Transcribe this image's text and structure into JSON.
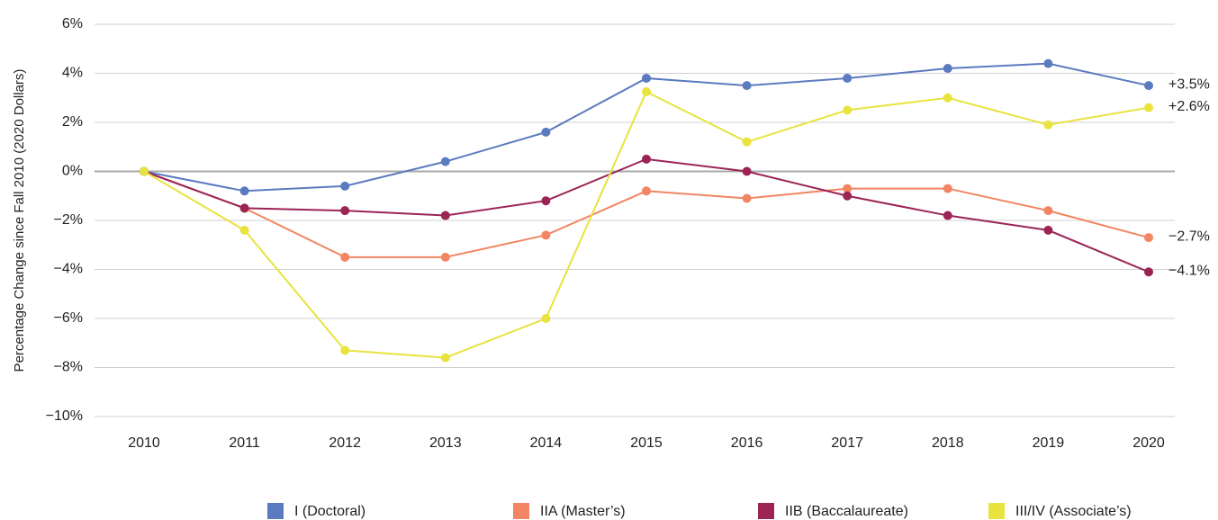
{
  "chart_data": {
    "type": "line",
    "y_label": "Percentage Change since Fall 2010 (2020 Dollars)",
    "categories": [
      "2010",
      "2011",
      "2012",
      "2013",
      "2014",
      "2015",
      "2016",
      "2017",
      "2018",
      "2019",
      "2020"
    ],
    "series": [
      {
        "name": "I (Doctoral)",
        "color": "#5b7bc0",
        "values": [
          0,
          -0.8,
          -0.6,
          0.4,
          1.6,
          3.8,
          3.5,
          3.8,
          4.2,
          4.4,
          3.5
        ],
        "value_labels": [
          null,
          null,
          null,
          null,
          null,
          null,
          null,
          null,
          null,
          null,
          "+3.5%"
        ]
      },
      {
        "name": "IIA (Master’s)",
        "color": "#f28563",
        "values": [
          0,
          -1.5,
          -3.5,
          -3.5,
          -2.6,
          -0.8,
          -1.1,
          -0.7,
          -0.7,
          -1.6,
          -2.7
        ],
        "value_labels": [
          null,
          null,
          null,
          null,
          null,
          null,
          null,
          null,
          null,
          null,
          "−2.7%"
        ]
      },
      {
        "name": "IIB (Baccalaureate)",
        "color": "#9b2455",
        "values": [
          0,
          -1.5,
          -1.6,
          -1.8,
          -1.2,
          0.5,
          0,
          -1.0,
          -1.8,
          -2.4,
          -4.1
        ],
        "value_labels": [
          null,
          null,
          null,
          null,
          null,
          null,
          null,
          null,
          null,
          null,
          "−4.1%"
        ]
      },
      {
        "name": "III/IV (Associate’s)",
        "color": "#e8e33e",
        "values": [
          0,
          -2.4,
          -7.3,
          -7.6,
          -6.0,
          3.25,
          1.2,
          2.5,
          3.0,
          1.9,
          2.6
        ],
        "value_labels": [
          null,
          null,
          null,
          null,
          null,
          null,
          null,
          null,
          null,
          null,
          "+2.6%"
        ]
      }
    ],
    "ylim": [
      -10,
      6
    ],
    "yticks": [
      {
        "value": -10,
        "label": "−10%"
      },
      {
        "value": -8,
        "label": "−8%"
      },
      {
        "value": -6,
        "label": "−6%"
      },
      {
        "value": -4,
        "label": "−4%"
      },
      {
        "value": -2,
        "label": "−2%"
      },
      {
        "value": 0,
        "label": "0%"
      },
      {
        "value": 2,
        "label": "2%"
      },
      {
        "value": 4,
        "label": "4%"
      },
      {
        "value": 6,
        "label": "6%"
      }
    ],
    "grid": true,
    "legend": "bottom"
  }
}
